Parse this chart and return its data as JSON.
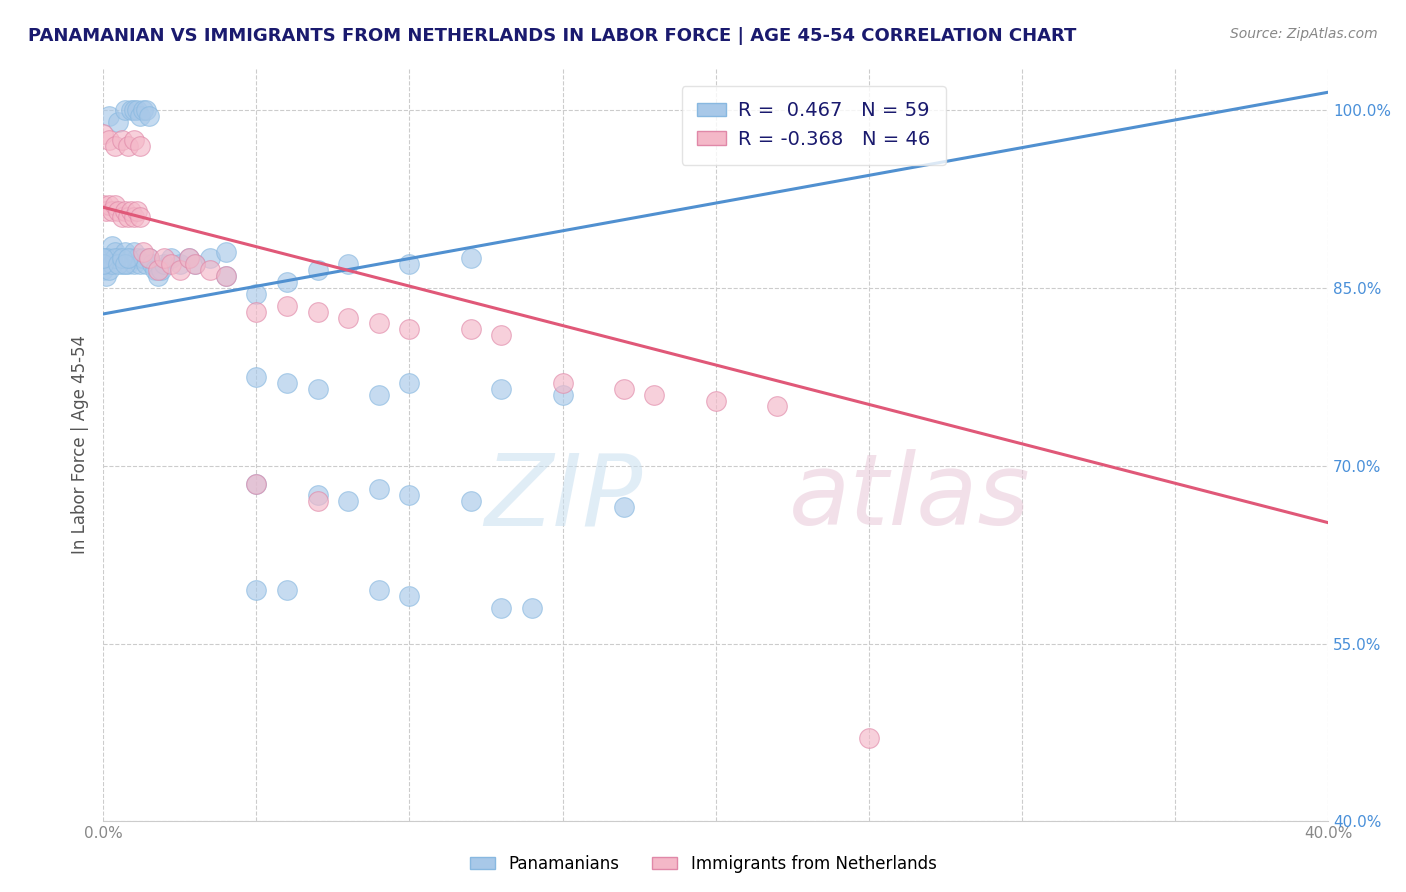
{
  "title": "PANAMANIAN VS IMMIGRANTS FROM NETHERLANDS IN LABOR FORCE | AGE 45-54 CORRELATION CHART",
  "source_text": "Source: ZipAtlas.com",
  "ylabel": "In Labor Force | Age 45-54",
  "xlim": [
    0.0,
    0.4
  ],
  "ylim": [
    0.4,
    1.035
  ],
  "yticks": [
    0.4,
    0.55,
    0.7,
    0.85,
    1.0
  ],
  "ytick_labels": [
    "40.0%",
    "55.0%",
    "70.0%",
    "85.0%",
    "100.0%"
  ],
  "xtick_vals": [
    0.0,
    0.05,
    0.1,
    0.15,
    0.2,
    0.25,
    0.3,
    0.35,
    0.4
  ],
  "xtick_labels": [
    "0.0%",
    "",
    "",
    "",
    "",
    "",
    "",
    "",
    "40.0%"
  ],
  "blue_line": {
    "x0": 0.0,
    "y0": 0.828,
    "x1": 0.4,
    "y1": 1.015
  },
  "pink_line": {
    "x0": 0.0,
    "y0": 0.918,
    "x1": 0.4,
    "y1": 0.652
  },
  "blue_scatter": [
    [
      0.002,
      0.995
    ],
    [
      0.005,
      0.99
    ],
    [
      0.007,
      1.0
    ],
    [
      0.009,
      1.0
    ],
    [
      0.01,
      1.0
    ],
    [
      0.011,
      1.0
    ],
    [
      0.012,
      0.995
    ],
    [
      0.013,
      1.0
    ],
    [
      0.014,
      1.0
    ],
    [
      0.015,
      0.995
    ],
    [
      0.002,
      0.875
    ],
    [
      0.003,
      0.885
    ],
    [
      0.004,
      0.88
    ],
    [
      0.005,
      0.875
    ],
    [
      0.006,
      0.87
    ],
    [
      0.007,
      0.88
    ],
    [
      0.008,
      0.87
    ],
    [
      0.009,
      0.875
    ],
    [
      0.01,
      0.87
    ],
    [
      0.01,
      0.88
    ],
    [
      0.011,
      0.875
    ],
    [
      0.012,
      0.87
    ],
    [
      0.013,
      0.875
    ],
    [
      0.014,
      0.87
    ],
    [
      0.015,
      0.875
    ],
    [
      0.016,
      0.87
    ],
    [
      0.017,
      0.865
    ],
    [
      0.018,
      0.86
    ],
    [
      0.019,
      0.865
    ],
    [
      0.02,
      0.87
    ],
    [
      0.022,
      0.875
    ],
    [
      0.025,
      0.87
    ],
    [
      0.028,
      0.875
    ],
    [
      0.03,
      0.87
    ],
    [
      0.035,
      0.875
    ],
    [
      0.04,
      0.88
    ],
    [
      0.0,
      0.865
    ],
    [
      0.001,
      0.87
    ],
    [
      0.001,
      0.875
    ],
    [
      0.001,
      0.86
    ],
    [
      0.002,
      0.865
    ],
    [
      0.003,
      0.87
    ],
    [
      0.004,
      0.875
    ],
    [
      0.0,
      0.87
    ],
    [
      0.0,
      0.875
    ],
    [
      0.005,
      0.87
    ],
    [
      0.006,
      0.875
    ],
    [
      0.007,
      0.87
    ],
    [
      0.008,
      0.875
    ],
    [
      0.04,
      0.86
    ],
    [
      0.05,
      0.845
    ],
    [
      0.06,
      0.855
    ],
    [
      0.07,
      0.865
    ],
    [
      0.08,
      0.87
    ],
    [
      0.1,
      0.87
    ],
    [
      0.12,
      0.875
    ],
    [
      0.05,
      0.775
    ],
    [
      0.06,
      0.77
    ],
    [
      0.07,
      0.765
    ],
    [
      0.09,
      0.76
    ],
    [
      0.1,
      0.77
    ],
    [
      0.13,
      0.765
    ],
    [
      0.15,
      0.76
    ],
    [
      0.05,
      0.685
    ],
    [
      0.07,
      0.675
    ],
    [
      0.08,
      0.67
    ],
    [
      0.09,
      0.68
    ],
    [
      0.1,
      0.675
    ],
    [
      0.12,
      0.67
    ],
    [
      0.17,
      0.665
    ],
    [
      0.05,
      0.595
    ],
    [
      0.06,
      0.595
    ],
    [
      0.09,
      0.595
    ],
    [
      0.1,
      0.59
    ],
    [
      0.13,
      0.58
    ],
    [
      0.14,
      0.58
    ]
  ],
  "pink_scatter": [
    [
      0.0,
      0.98
    ],
    [
      0.002,
      0.975
    ],
    [
      0.004,
      0.97
    ],
    [
      0.006,
      0.975
    ],
    [
      0.008,
      0.97
    ],
    [
      0.01,
      0.975
    ],
    [
      0.012,
      0.97
    ],
    [
      0.0,
      0.92
    ],
    [
      0.001,
      0.915
    ],
    [
      0.002,
      0.92
    ],
    [
      0.003,
      0.915
    ],
    [
      0.004,
      0.92
    ],
    [
      0.005,
      0.915
    ],
    [
      0.006,
      0.91
    ],
    [
      0.007,
      0.915
    ],
    [
      0.008,
      0.91
    ],
    [
      0.009,
      0.915
    ],
    [
      0.01,
      0.91
    ],
    [
      0.011,
      0.915
    ],
    [
      0.012,
      0.91
    ],
    [
      0.013,
      0.88
    ],
    [
      0.015,
      0.875
    ],
    [
      0.018,
      0.865
    ],
    [
      0.02,
      0.875
    ],
    [
      0.022,
      0.87
    ],
    [
      0.025,
      0.865
    ],
    [
      0.028,
      0.875
    ],
    [
      0.03,
      0.87
    ],
    [
      0.035,
      0.865
    ],
    [
      0.04,
      0.86
    ],
    [
      0.05,
      0.83
    ],
    [
      0.06,
      0.835
    ],
    [
      0.07,
      0.83
    ],
    [
      0.08,
      0.825
    ],
    [
      0.09,
      0.82
    ],
    [
      0.1,
      0.815
    ],
    [
      0.12,
      0.815
    ],
    [
      0.13,
      0.81
    ],
    [
      0.15,
      0.77
    ],
    [
      0.17,
      0.765
    ],
    [
      0.18,
      0.76
    ],
    [
      0.2,
      0.755
    ],
    [
      0.22,
      0.75
    ],
    [
      0.25,
      0.47
    ],
    [
      0.05,
      0.685
    ],
    [
      0.07,
      0.67
    ]
  ],
  "blue_color": "#a8c8e8",
  "pink_color": "#f4b8c8",
  "blue_line_color": "#5090d0",
  "pink_line_color": "#e05878",
  "grid_color": "#cccccc",
  "bg_color": "#ffffff",
  "title_color": "#1a1a6e",
  "source_color": "#888888",
  "ytick_color": "#4a90d9",
  "xtick_color": "#888888"
}
